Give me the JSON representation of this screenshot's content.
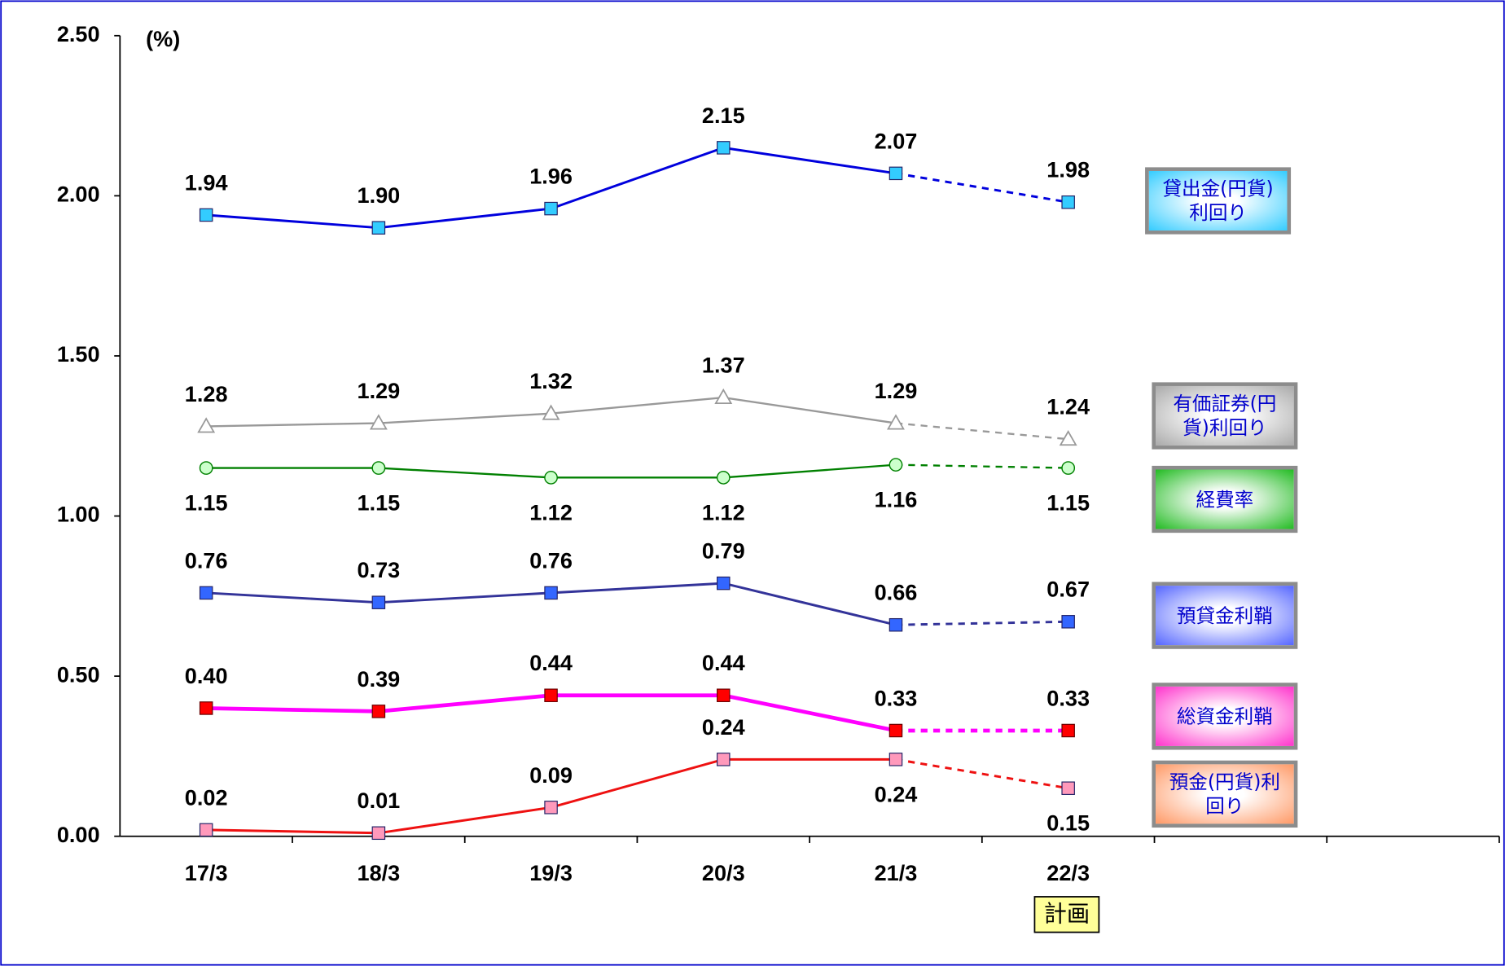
{
  "chart_data": {
    "type": "line",
    "y_unit": "(%)",
    "categories": [
      "17/3",
      "18/3",
      "19/3",
      "20/3",
      "21/3",
      "22/3",
      null,
      null
    ],
    "ylim": [
      0,
      2.5
    ],
    "yticks": [
      {
        "value": 0,
        "label": "0.00"
      },
      {
        "value": 0.5,
        "label": "0.50"
      },
      {
        "value": 1,
        "label": "1.00"
      },
      {
        "value": 1.5,
        "label": "1.50"
      },
      {
        "value": 2,
        "label": "2.00"
      },
      {
        "value": 2.5,
        "label": "2.50"
      }
    ],
    "annotations": [
      {
        "text": "計画",
        "category": "22/3"
      }
    ],
    "series": [
      {
        "name": "貸出金(円貨)利回り",
        "color": "#0000dd",
        "marker": "square",
        "marker_color": "#33ccff",
        "legend_color": "#33ccff",
        "values": [
          1.94,
          1.9,
          1.96,
          2.15,
          2.07,
          1.98,
          null,
          null
        ],
        "value_labels": [
          "1.94",
          "1.90",
          "1.96",
          "2.15",
          "2.07",
          "1.98",
          null,
          null
        ]
      },
      {
        "name": "有価証券(円貨)利回り",
        "color": "#999999",
        "marker": "triangle",
        "marker_color": "#ffffff",
        "legend_color": "#aaaaaa",
        "values": [
          1.28,
          1.29,
          1.32,
          1.37,
          1.29,
          1.24,
          null,
          null
        ],
        "value_labels": [
          "1.28",
          "1.29",
          "1.32",
          "1.37",
          "1.29",
          "1.24",
          null,
          null
        ]
      },
      {
        "name": "経費率",
        "color": "#008000",
        "marker": "circle",
        "marker_color": "#ccffcc",
        "legend_color": "#22bb22",
        "values": [
          1.15,
          1.15,
          1.12,
          1.12,
          1.16,
          1.15,
          null,
          null
        ],
        "value_labels": [
          "1.15",
          "1.15",
          "1.12",
          "1.12",
          "1.16",
          "1.15",
          null,
          null
        ]
      },
      {
        "name": "預貸金利鞘",
        "color": "#333399",
        "marker": "square",
        "marker_color": "#3366ff",
        "legend_color": "#5566ff",
        "values": [
          0.76,
          0.73,
          0.76,
          0.79,
          0.66,
          0.67,
          null,
          null
        ],
        "value_labels": [
          "0.76",
          "0.73",
          "0.76",
          "0.79",
          "0.66",
          "0.67",
          null,
          null
        ]
      },
      {
        "name": "総資金利鞘",
        "color": "#ff00ff",
        "marker": "square",
        "marker_color": "#ff0000",
        "legend_color": "#ff33cc",
        "values": [
          0.4,
          0.39,
          0.44,
          0.44,
          0.33,
          0.33,
          null,
          null
        ],
        "value_labels": [
          "0.40",
          "0.39",
          "0.44",
          "0.44",
          "0.33",
          "0.33",
          null,
          null
        ]
      },
      {
        "name": "預金(円貨)利回り",
        "color": "#ee1111",
        "marker": "square",
        "marker_color": "#ff99bb",
        "legend_color": "#ff9966",
        "values": [
          0.02,
          0.01,
          0.09,
          0.24,
          0.24,
          0.15,
          null,
          null
        ],
        "value_labels": [
          "0.02",
          "0.01",
          "0.09",
          "0.24",
          "0.24",
          "0.15",
          null,
          null
        ]
      }
    ]
  }
}
